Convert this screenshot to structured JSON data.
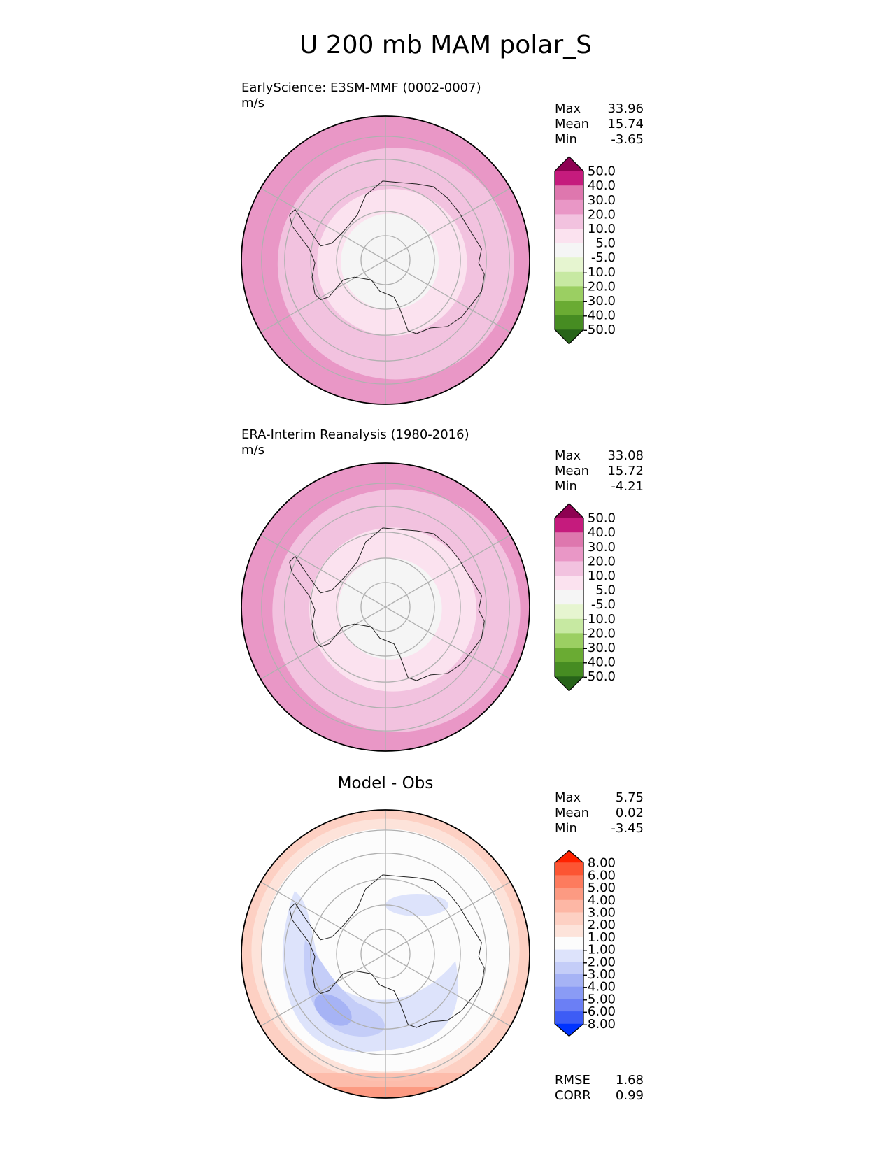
{
  "chart_data": {
    "title": "U 200 mb MAM polar_S",
    "panels": [
      {
        "type": "contour-map",
        "title": "",
        "subtitle": "EarlyScience: E3SM-MMF (0002-0007)",
        "units": "m/s",
        "stats": [
          {
            "label": "Max",
            "value": "33.96"
          },
          {
            "label": "Mean",
            "value": "15.74"
          },
          {
            "label": "Min",
            "value": "-3.65"
          }
        ],
        "colorbar": {
          "levels": [
            "50.0",
            "40.0",
            "30.0",
            "20.0",
            "10.0",
            "5.0",
            "-5.0",
            "-10.0",
            "-20.0",
            "-30.0",
            "-40.0",
            "-50.0"
          ],
          "colors": [
            "#8e0152",
            "#c51b7d",
            "#de77ae",
            "#e997c6",
            "#f2c2df",
            "#fbe2ef",
            "#f5f5f5",
            "#e6f5d0",
            "#c7e9a2",
            "#9bcf62",
            "#6aab33",
            "#468c22",
            "#276419"
          ]
        },
        "rings": [
          {
            "level_index": 3,
            "scale": 1.0
          },
          {
            "level_index": 4,
            "scale": 0.82
          },
          {
            "level_index": 5,
            "scale": 0.52
          },
          {
            "level_index": 6,
            "scale": 0.34
          }
        ]
      },
      {
        "type": "contour-map",
        "title": "",
        "subtitle": "ERA-Interim Reanalysis (1980-2016)",
        "units": "m/s",
        "stats": [
          {
            "label": "Max",
            "value": "33.08"
          },
          {
            "label": "Mean",
            "value": "15.72"
          },
          {
            "label": "Min",
            "value": "-4.21"
          }
        ],
        "colorbar": {
          "levels": [
            "50.0",
            "40.0",
            "30.0",
            "20.0",
            "10.0",
            "5.0",
            "-5.0",
            "-10.0",
            "-20.0",
            "-30.0",
            "-40.0",
            "-50.0"
          ],
          "colors": [
            "#8e0152",
            "#c51b7d",
            "#de77ae",
            "#e997c6",
            "#f2c2df",
            "#fbe2ef",
            "#f5f5f5",
            "#e6f5d0",
            "#c7e9a2",
            "#9bcf62",
            "#6aab33",
            "#468c22",
            "#276419"
          ]
        },
        "rings": [
          {
            "level_index": 3,
            "scale": 1.0
          },
          {
            "level_index": 4,
            "scale": 0.86
          },
          {
            "level_index": 5,
            "scale": 0.58
          },
          {
            "level_index": 6,
            "scale": 0.36
          }
        ]
      },
      {
        "type": "contour-map",
        "title": "Model - Obs",
        "subtitle": "",
        "units": "",
        "stats": [
          {
            "label": "Max",
            "value": "5.75"
          },
          {
            "label": "Mean",
            "value": "0.02"
          },
          {
            "label": "Min",
            "value": "-3.45"
          }
        ],
        "colorbar": {
          "levels": [
            "8.00",
            "6.00",
            "5.00",
            "4.00",
            "3.00",
            "2.00",
            "1.00",
            "-1.00",
            "-2.00",
            "-3.00",
            "-4.00",
            "-5.00",
            "-6.00",
            "-8.00"
          ],
          "colors": [
            "#ff2200",
            "#fc5533",
            "#fd7b5e",
            "#fc9a82",
            "#fdb7a5",
            "#fdd0c3",
            "#fde3da",
            "#fcfcfc",
            "#dde3fb",
            "#c4cdf8",
            "#a6b3f5",
            "#8a9bf5",
            "#6b7ff5",
            "#3d5cf5",
            "#0033ff"
          ]
        },
        "rings": [
          {
            "level_index": 5,
            "scale": 1.0
          },
          {
            "level_index": 6,
            "scale": 0.93
          },
          {
            "level_index": 7,
            "scale": 0.86
          }
        ],
        "footer_stats": [
          {
            "label": "RMSE",
            "value": "1.68"
          },
          {
            "label": "CORR",
            "value": "0.99"
          }
        ]
      }
    ]
  }
}
